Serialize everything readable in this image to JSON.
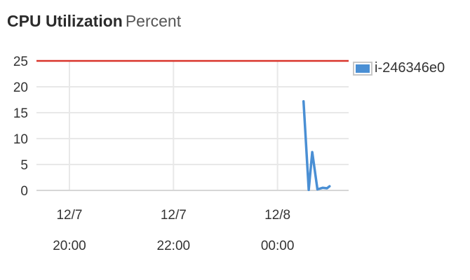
{
  "title": {
    "main": "CPU Utilization",
    "unit": "Percent"
  },
  "legend": {
    "label": "i-246346e0"
  },
  "colors": {
    "series": "#4a8fd4",
    "threshold": "#d9342b",
    "grid": "#e8e8e8"
  },
  "chart_data": {
    "type": "line",
    "title": "CPU Utilization",
    "ylabel": "Percent",
    "xlabel": "",
    "ylim": [
      0,
      25
    ],
    "yticks": [
      0,
      5,
      10,
      15,
      20,
      25
    ],
    "xlim": [
      "2013-12-07 19:22",
      "2013-12-08 01:22"
    ],
    "xticks": [
      {
        "value": "2013-12-07 20:00",
        "date": "12/7",
        "time": "20:00"
      },
      {
        "value": "2013-12-07 22:00",
        "date": "12/7",
        "time": "22:00"
      },
      {
        "value": "2013-12-08 00:00",
        "date": "12/8",
        "time": "00:00"
      }
    ],
    "grid": true,
    "legend_position": "top-right",
    "threshold": {
      "y": 25
    },
    "series": [
      {
        "name": "i-246346e0",
        "x": [
          "2013-12-08 00:30",
          "2013-12-08 00:36",
          "2013-12-08 00:40",
          "2013-12-08 00:46",
          "2013-12-08 00:52",
          "2013-12-08 00:57",
          "2013-12-08 01:00"
        ],
        "y": [
          17.2,
          0.1,
          7.4,
          0.2,
          0.5,
          0.4,
          0.8
        ]
      }
    ]
  }
}
